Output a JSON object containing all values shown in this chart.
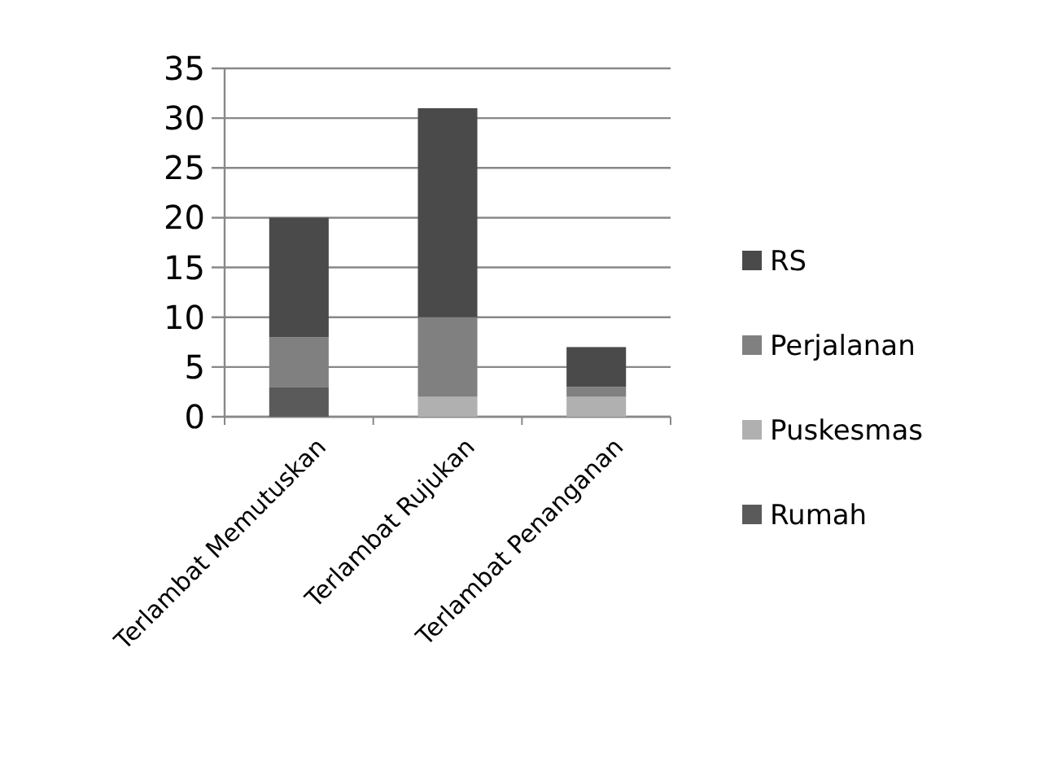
{
  "chart_data": {
    "type": "bar",
    "stacked": true,
    "categories": [
      "Terlambat Memutuskan",
      "Terlambat Rujukan",
      "Terlambat Penanganan"
    ],
    "series": [
      {
        "name": "Rumah",
        "color": "#5a5a5a",
        "values": [
          3,
          0,
          0
        ]
      },
      {
        "name": "Puskesmas",
        "color": "#b0b0b0",
        "values": [
          0,
          2,
          2
        ]
      },
      {
        "name": "Perjalanan",
        "color": "#808080",
        "values": [
          5,
          8,
          1
        ]
      },
      {
        "name": "RS",
        "color": "#4a4a4a",
        "values": [
          12,
          21,
          4
        ]
      }
    ],
    "ylim": [
      0,
      35
    ],
    "yticks": [
      0,
      5,
      10,
      15,
      20,
      25,
      30,
      35
    ],
    "grid": "y",
    "legend": "right"
  }
}
